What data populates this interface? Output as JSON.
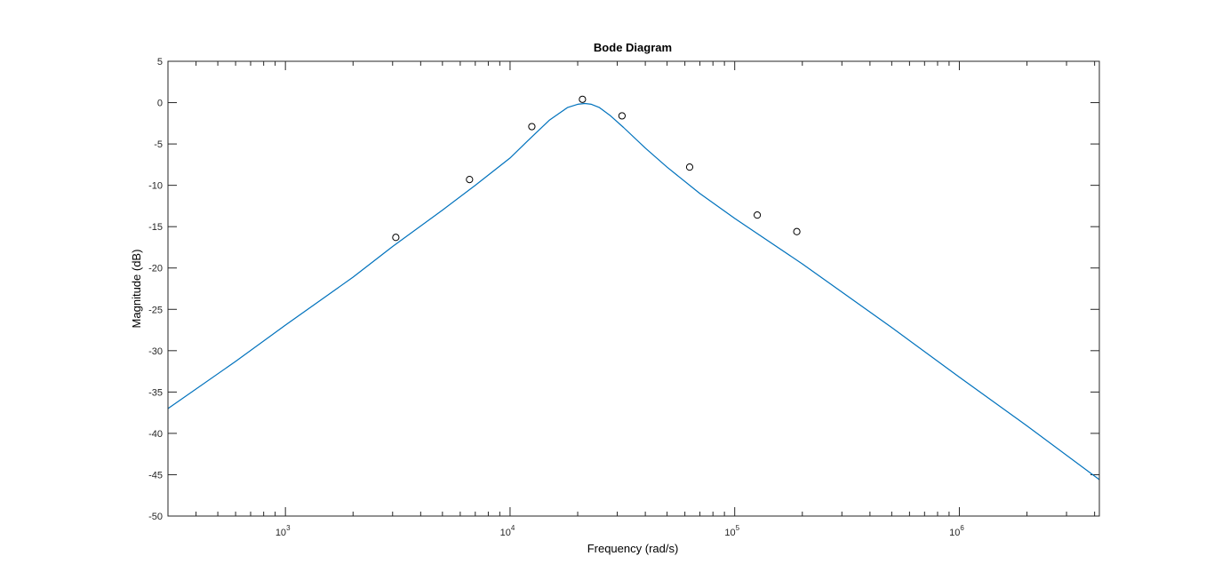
{
  "chart_data": {
    "type": "line",
    "title": "Bode Diagram",
    "xlabel": "Frequency  (rad/s)",
    "ylabel": "Magnitude (dB)",
    "x_scale": "log",
    "xlim": [
      300,
      4200000
    ],
    "ylim": [
      -50,
      5
    ],
    "x_ticks": [
      {
        "base": "10",
        "exp": "3",
        "value": 1000
      },
      {
        "base": "10",
        "exp": "4",
        "value": 10000
      },
      {
        "base": "10",
        "exp": "5",
        "value": 100000
      },
      {
        "base": "10",
        "exp": "6",
        "value": 1000000
      }
    ],
    "y_ticks": [
      5,
      0,
      -5,
      -10,
      -15,
      -20,
      -25,
      -30,
      -35,
      -40,
      -45,
      -50
    ],
    "grid": false,
    "series": [
      {
        "kind": "line",
        "color": "#0072bd",
        "x": [
          300,
          600,
          1000,
          2000,
          3000,
          5000,
          7000,
          10000,
          12000,
          15000,
          18000,
          20000,
          21500,
          23000,
          25000,
          28000,
          32000,
          40000,
          50000,
          70000,
          100000,
          200000,
          500000,
          1000000,
          2000000,
          4200000
        ],
        "y": [
          -37.0,
          -31.3,
          -26.9,
          -21.1,
          -17.4,
          -13.0,
          -10.0,
          -6.7,
          -4.6,
          -2.1,
          -0.6,
          -0.2,
          -0.1,
          -0.2,
          -0.6,
          -1.6,
          -3.0,
          -5.5,
          -7.8,
          -11.0,
          -14.0,
          -19.5,
          -27.2,
          -33.2,
          -39.1,
          -45.6
        ]
      },
      {
        "kind": "markers",
        "marker": "circle",
        "color": "#000000",
        "x": [
          3100,
          6600,
          12500,
          21000,
          31500,
          63000,
          126000,
          189000
        ],
        "y": [
          -16.3,
          -9.3,
          -2.9,
          0.4,
          -1.6,
          -7.8,
          -13.6,
          -15.6
        ]
      }
    ]
  }
}
